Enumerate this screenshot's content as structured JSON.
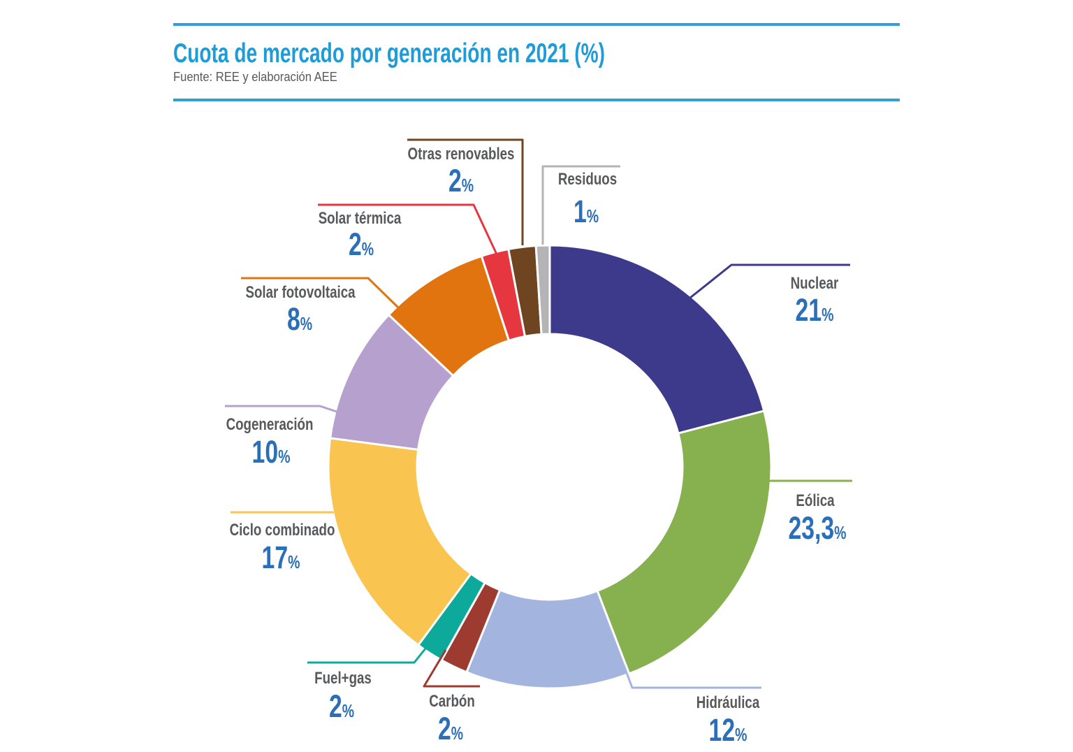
{
  "header": {
    "title": "Cuota de mercado por generación en 2021 (%)",
    "source": "Fuente: REE y elaboración AEE",
    "title_color": "#1E9CD8",
    "rule_color": "#2E9FD9"
  },
  "text_colors": {
    "label": "#58595B",
    "value": "#2B6FB8"
  },
  "chart_data": {
    "type": "pie",
    "variant": "donut",
    "title": "Cuota de mercado por generación en 2021 (%)",
    "unit": "%",
    "start_angle_deg": 0,
    "direction": "clockwise",
    "legend_position": "callout-labels",
    "segments": [
      {
        "id": "nuclear",
        "label": "Nuclear",
        "value_display": "21",
        "percent": 21,
        "color": "#3D3A8C"
      },
      {
        "id": "eolica",
        "label": "Eólica",
        "value_display": "23,3",
        "percent": 23.3,
        "color": "#87B04E"
      },
      {
        "id": "hidraulica",
        "label": "Hidráulica",
        "value_display": "12",
        "percent": 12,
        "color": "#A3B5DF"
      },
      {
        "id": "carbon",
        "label": "Carbón",
        "value_display": "2",
        "percent": 2,
        "color": "#9D3B30"
      },
      {
        "id": "fuel-gas",
        "label": "Fuel+gas",
        "value_display": "2",
        "percent": 2,
        "color": "#0DA99B"
      },
      {
        "id": "ciclo-combinado",
        "label": "Ciclo combinado",
        "value_display": "17",
        "percent": 17,
        "color": "#FAC450"
      },
      {
        "id": "cogeneracion",
        "label": "Cogeneración",
        "value_display": "10",
        "percent": 10,
        "color": "#B5A0CE"
      },
      {
        "id": "solar-fotovoltaica",
        "label": "Solar fotovoltaica",
        "value_display": "8",
        "percent": 8,
        "color": "#E2740F"
      },
      {
        "id": "solar-termica",
        "label": "Solar térmica",
        "value_display": "2",
        "percent": 2,
        "color": "#E63740"
      },
      {
        "id": "otras-renovables",
        "label": "Otras renovables",
        "value_display": "2",
        "percent": 2,
        "color": "#6F4521"
      },
      {
        "id": "residuos",
        "label": "Residuos",
        "value_display": "1",
        "percent": 1,
        "color": "#B4B4B6"
      }
    ]
  }
}
